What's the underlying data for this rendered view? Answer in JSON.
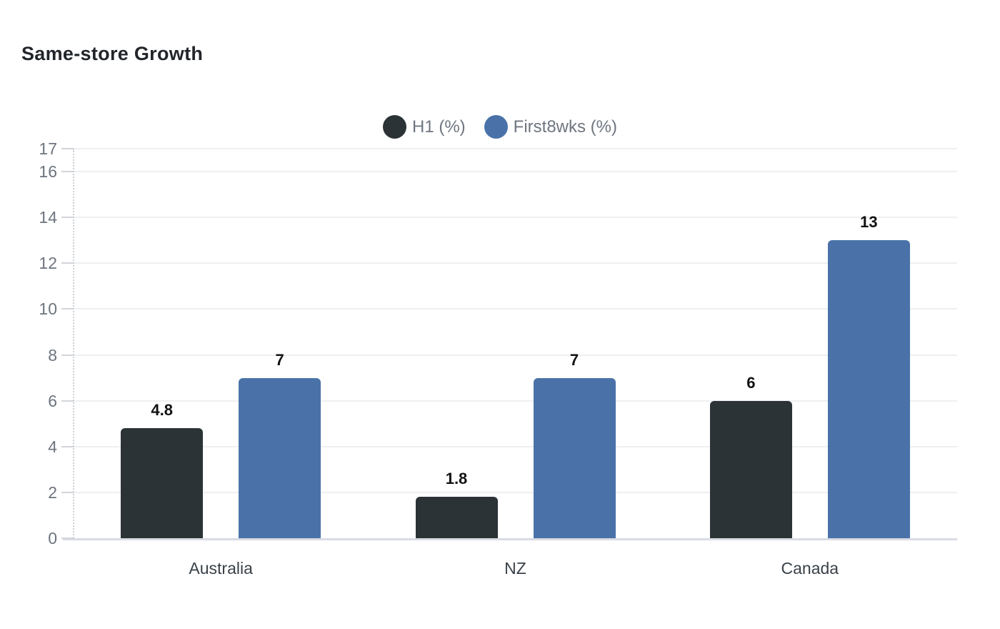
{
  "chart_data": {
    "type": "bar",
    "title": "Same-store Growth",
    "categories": [
      "Australia",
      "NZ",
      "Canada"
    ],
    "series": [
      {
        "name": "H1 (%)",
        "color": "#2b3337",
        "values": [
          4.8,
          1.8,
          6
        ],
        "labels": [
          "4.8",
          "1.8",
          "6"
        ]
      },
      {
        "name": "First8wks (%)",
        "color": "#4a72a9",
        "values": [
          7,
          7,
          13
        ],
        "labels": [
          "7",
          "7",
          "13"
        ]
      }
    ],
    "ylim": [
      0,
      17
    ],
    "yticks": [
      0,
      2,
      4,
      6,
      8,
      10,
      12,
      14,
      16,
      17
    ],
    "grid": true,
    "legend_position": "top",
    "xlabel": "",
    "ylabel": "",
    "colors": {
      "background": "#ffffff",
      "title": "#22262b",
      "grid_line": "#edeff1",
      "baseline": "#d9dbe4",
      "axis_dotted": "#ccd0d5",
      "tick": "#d2d5da",
      "y_label": "#6e747e",
      "x_label": "#3a4148",
      "legend_label": "#6f7680",
      "data_label": "#121212"
    }
  }
}
